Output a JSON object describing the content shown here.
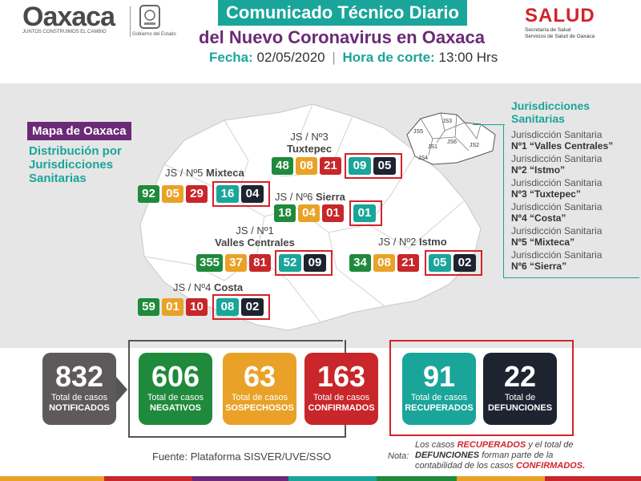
{
  "header": {
    "logo_word": "Oaxaca",
    "logo_sub": "JUNTOS CONSTRUIMOS EL CAMBIO",
    "gov_caption": "Gobierno del Estado",
    "title_line1": "Comunicado Técnico Diario",
    "title_line2": "del Nuevo Coronavirus en Oaxaca",
    "fecha_key": "Fecha:",
    "fecha_val": "02/05/2020",
    "sep": "|",
    "hora_key": "Hora de corte:",
    "hora_val": "13:00 Hrs",
    "salud": "SALUD",
    "salud_sub1": "Secretaría de Salud",
    "salud_sub2": "Servicios de Salud de Oaxaca"
  },
  "map": {
    "tag": "Mapa de Oaxaca",
    "dist1": "Distribución por",
    "dist2": "Jurisdicciones",
    "dist3": "Sanitarias",
    "inset_labels": [
      "JS5",
      "JS3",
      "JS6",
      "JS2",
      "JS1",
      "JS4"
    ],
    "jurisdictions": [
      {
        "label_js": "JS / Nº3",
        "label_name": "Tuxtepec",
        "neg": "48",
        "sos": "08",
        "conf": "21",
        "rec": "09",
        "def": "05"
      },
      {
        "label_js": "JS / Nº5",
        "label_name": "Mixteca",
        "neg": "92",
        "sos": "05",
        "conf": "29",
        "rec": "16",
        "def": "04"
      },
      {
        "label_js": "JS / Nº6",
        "label_name": "Sierra",
        "neg": "18",
        "sos": "04",
        "conf": "01",
        "rec": "01"
      },
      {
        "label_js": "JS / Nº1",
        "label_name": "Valles Centrales",
        "neg": "355",
        "sos": "37",
        "conf": "81",
        "rec": "52",
        "def": "09"
      },
      {
        "label_js": "JS / Nº2",
        "label_name": "Istmo",
        "neg": "34",
        "sos": "08",
        "conf": "21",
        "rec": "05",
        "def": "02"
      },
      {
        "label_js": "JS / Nº4",
        "label_name": "Costa",
        "neg": "59",
        "sos": "01",
        "conf": "10",
        "rec": "08",
        "def": "02"
      }
    ]
  },
  "legend": {
    "title1": "Jurisdicciones",
    "title2": "Sanitarias",
    "items": [
      {
        "line1": "Jurisdicción Sanitaria",
        "line2": "Nº1 “Valles Centrales”"
      },
      {
        "line1": "Jurisdicción Sanitaria",
        "line2": "Nº2 “Istmo”"
      },
      {
        "line1": "Jurisdicción Sanitaria",
        "line2": "Nº3 “Tuxtepec”"
      },
      {
        "line1": "Jurisdicción Sanitaria",
        "line2": "Nº4 “Costa”"
      },
      {
        "line1": "Jurisdicción Sanitaria",
        "line2": "Nº5 “Mixteca”"
      },
      {
        "line1": "Jurisdicción Sanitaria",
        "line2": "Nº6 “Sierra”"
      }
    ]
  },
  "totals": [
    {
      "num": "832",
      "l1": "Total de casos",
      "l2": "NOTIFICADOS"
    },
    {
      "num": "606",
      "l1": "Total de casos",
      "l2": "NEGATIVOS"
    },
    {
      "num": "63",
      "l1": "Total de casos",
      "l2": "SOSPECHOSOS"
    },
    {
      "num": "163",
      "l1": "Total de casos",
      "l2": "CONFIRMADOS"
    },
    {
      "num": "91",
      "l1": "Total de casos",
      "l2": "RECUPERADOS"
    },
    {
      "num": "22",
      "l1": "Total de",
      "l2": "DEFUNCIONES"
    }
  ],
  "footer": {
    "fuente": "Fuente: Plataforma SISVER/UVE/SSO",
    "nota_key": "Nota:",
    "nota_a": "Los casos ",
    "nota_rec": "RECUPERADOS",
    "nota_b": " y el total de",
    "nota_def": "DEFUNCIONES",
    "nota_c": " forman parte de la",
    "nota_d": "contabilidad de los casos ",
    "nota_conf": "CONFIRMADOS."
  },
  "colors": {
    "negativos": "#1f8a3b",
    "sospechosos": "#e9a227",
    "confirmados": "#c8262a",
    "recuperados": "#1aa59a",
    "defunciones": "#1d2430",
    "notificados": "#5e5a5c"
  }
}
